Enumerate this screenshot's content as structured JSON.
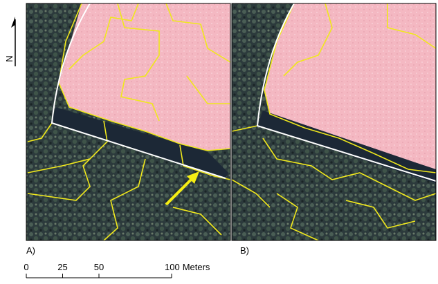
{
  "north_label": "N",
  "panels": [
    {
      "label": "A)"
    },
    {
      "label": "B)"
    }
  ],
  "scale_bar": {
    "ticks": [
      0,
      25,
      50,
      100
    ],
    "unit": "Meters"
  }
}
